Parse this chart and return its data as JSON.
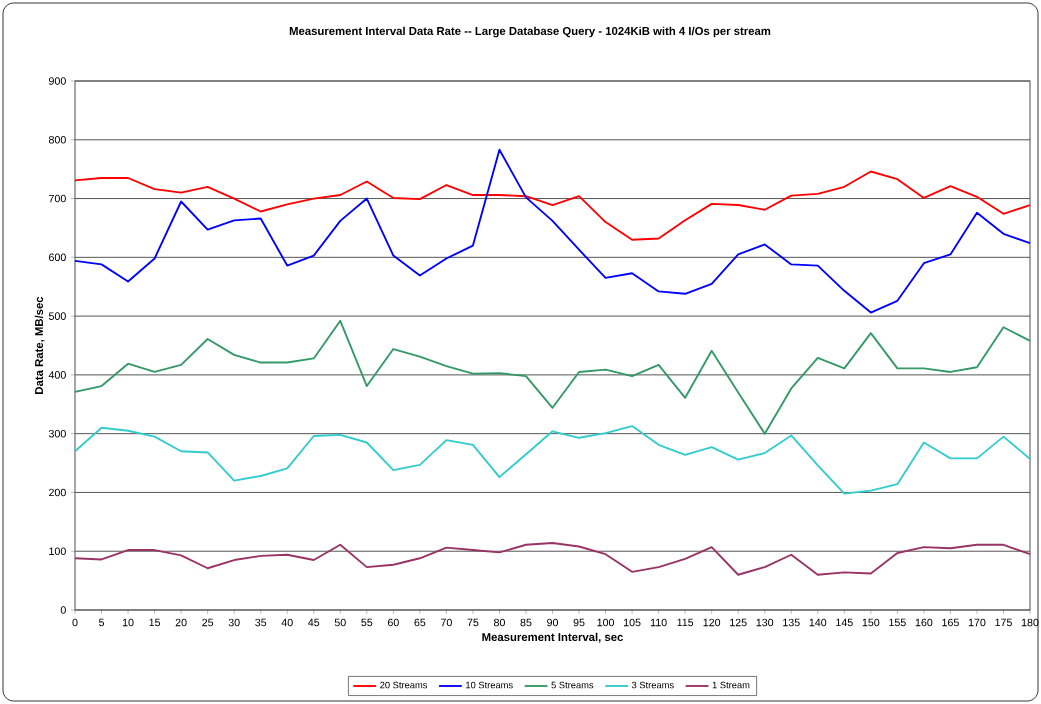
{
  "chart_data": {
    "type": "line",
    "title": "Measurement Interval Data Rate -- Large Database Query - 1024KiB with 4 I/Os per stream",
    "xlabel": "Measurement Interval, sec",
    "ylabel": "Data Rate, MB/sec",
    "x": [
      0,
      5,
      10,
      15,
      20,
      25,
      30,
      35,
      40,
      45,
      50,
      55,
      60,
      65,
      70,
      75,
      80,
      85,
      90,
      95,
      100,
      105,
      110,
      115,
      120,
      125,
      130,
      135,
      140,
      145,
      150,
      155,
      160,
      165,
      170,
      175,
      180
    ],
    "xlim": [
      0,
      180
    ],
    "xticks": [
      0,
      5,
      10,
      15,
      20,
      25,
      30,
      35,
      40,
      45,
      50,
      55,
      60,
      65,
      70,
      75,
      80,
      85,
      90,
      95,
      100,
      105,
      110,
      115,
      120,
      125,
      130,
      135,
      140,
      145,
      150,
      155,
      160,
      165,
      170,
      175,
      180
    ],
    "ylim": [
      0,
      900
    ],
    "yticks": [
      0,
      100,
      200,
      300,
      400,
      500,
      600,
      700,
      800,
      900
    ],
    "grid": "y",
    "legend": "bottom",
    "marker": "none",
    "line_style": "solid",
    "series": [
      {
        "name": "20 Streams",
        "color": "#ff0000",
        "values": [
          731,
          735,
          735,
          716,
          710,
          720,
          700,
          678,
          690,
          700,
          706,
          729,
          701,
          699,
          723,
          706,
          706,
          704,
          689,
          704,
          660,
          630,
          632,
          663,
          691,
          689,
          681,
          705,
          708,
          720,
          746,
          733,
          701,
          721,
          703,
          674,
          689
        ]
      },
      {
        "name": "10 Streams",
        "color": "#0000ff",
        "values": [
          594,
          588,
          559,
          598,
          695,
          647,
          663,
          666,
          586,
          603,
          662,
          700,
          603,
          569,
          598,
          620,
          783,
          702,
          662,
          613,
          565,
          573,
          542,
          538,
          555,
          605,
          622,
          588,
          586,
          543,
          506,
          526,
          590,
          605,
          676,
          640,
          624
        ]
      },
      {
        "name": "5 Streams",
        "color": "#339966",
        "values": [
          371,
          381,
          419,
          405,
          417,
          461,
          434,
          421,
          421,
          428,
          492,
          381,
          444,
          431,
          415,
          402,
          403,
          398,
          344,
          405,
          409,
          398,
          417,
          361,
          441,
          370,
          300,
          377,
          429,
          411,
          471,
          411,
          411,
          405,
          413,
          481,
          458
        ]
      },
      {
        "name": "3 Streams",
        "color": "#33cccc",
        "values": [
          270,
          310,
          305,
          295,
          270,
          268,
          220,
          228,
          241,
          296,
          298,
          285,
          238,
          247,
          289,
          281,
          226,
          265,
          304,
          293,
          301,
          313,
          281,
          264,
          277,
          256,
          267,
          297,
          246,
          198,
          203,
          214,
          285,
          258,
          258,
          295,
          257
        ]
      },
      {
        "name": "1 Stream",
        "color": "#993366",
        "values": [
          88,
          86,
          102,
          102,
          93,
          71,
          85,
          92,
          94,
          85,
          111,
          73,
          77,
          88,
          106,
          102,
          98,
          111,
          114,
          108,
          95,
          65,
          73,
          87,
          107,
          60,
          73,
          94,
          60,
          64,
          62,
          97,
          107,
          105,
          111,
          111,
          95
        ]
      }
    ]
  }
}
